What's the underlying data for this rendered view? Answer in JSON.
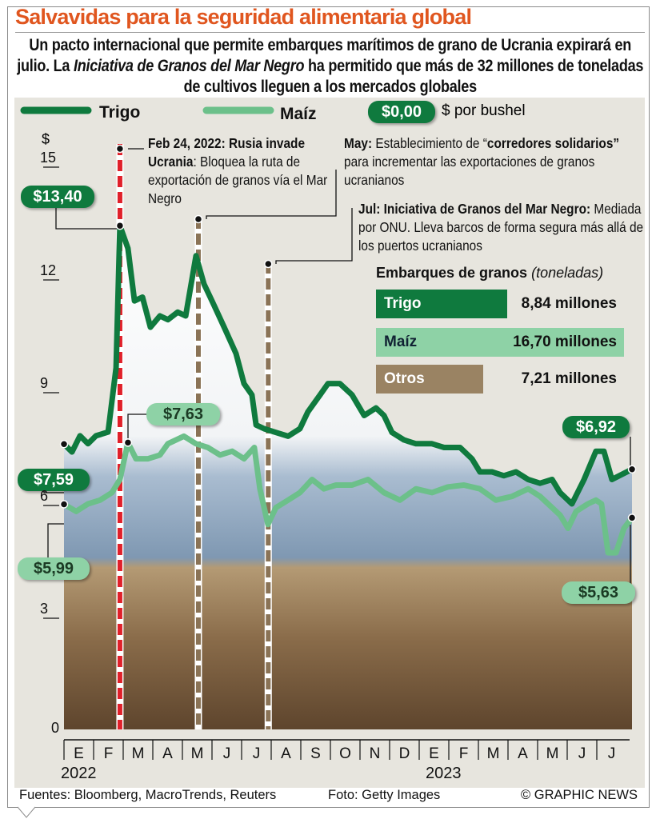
{
  "header": {
    "title": "Salvavidas para la seguridad alimentaria global",
    "subtitle_1": "Un pacto internacional que permite embarques marítimos de grano de Ucrania expirará en julio. La ",
    "subtitle_italic": "Iniciativa de Granos del Mar Negro",
    "subtitle_2": " ha permitido que más de 32 millones de toneladas de cultivos lleguen a los mercados globales"
  },
  "legend": {
    "wheat": "Trigo",
    "corn": "Maíz",
    "pill_sample": "$0,00",
    "unit": "$ por bushel"
  },
  "colors": {
    "wheat": "#0f7a3e",
    "corn": "#6cc08a",
    "event_invasion": "#e0202a",
    "event_other": "#8a7356",
    "title": "#e0561f",
    "panel": "#e7e5de"
  },
  "annotations": {
    "feb_b": "Feb 24, 2022: Rusia invade Ucrania",
    "feb_t": ": Bloquea la ruta de exportación de granos vía el Mar Negro",
    "may_b1": "May:",
    "may_t1": " Establecimiento de “",
    "may_b2": "corredores solidarios”",
    "may_t2": " para incrementar las exportaciones de granos ucranianos",
    "jul_b": "Jul: Iniciativa de Granos del Mar Negro:",
    "jul_t": " Mediada por ONU. Lleva barcos de forma segura más allá de los puertos ucranianos"
  },
  "callouts": {
    "wheat_start": "$7,59",
    "wheat_peak": "$13,40",
    "wheat_end": "$6,92",
    "corn_start": "$5,99",
    "corn_feb": "$7,63",
    "corn_end": "$5,63"
  },
  "shipments": {
    "title": "Embarques de granos",
    "unit": "(toneladas)",
    "items": [
      {
        "label": "Trigo",
        "value": 8.84,
        "text": "8,84 millones",
        "color": "#0f7a3e"
      },
      {
        "label": "Maíz",
        "value": 16.7,
        "text": "16,70 millones",
        "color": "#8ed2a6"
      },
      {
        "label": "Otros",
        "value": 7.21,
        "text": "7,21 millones",
        "color": "#9a8363"
      }
    ]
  },
  "chart_data": {
    "type": "line",
    "title": "Salvavidas para la seguridad alimentaria global",
    "ylabel": "$",
    "ylim": [
      0,
      15
    ],
    "yticks": [
      "0",
      "3",
      "6",
      "9",
      "12",
      "15"
    ],
    "months": [
      "E",
      "F",
      "M",
      "A",
      "M",
      "J",
      "J",
      "A",
      "S",
      "O",
      "N",
      "D",
      "E",
      "F",
      "M",
      "A",
      "M",
      "J",
      "J"
    ],
    "years": [
      "2022",
      "2023"
    ],
    "x_unit": "months since Jan 2022",
    "series": [
      {
        "name": "Trigo",
        "points": [
          [
            0,
            7.59
          ],
          [
            0.27,
            7.38
          ],
          [
            0.54,
            7.81
          ],
          [
            0.81,
            7.6
          ],
          [
            1.08,
            7.81
          ],
          [
            1.49,
            7.91
          ],
          [
            1.76,
            9.62
          ],
          [
            1.89,
            13.4
          ],
          [
            2.16,
            12.8
          ],
          [
            2.38,
            11.4
          ],
          [
            2.65,
            11.5
          ],
          [
            2.92,
            10.7
          ],
          [
            3.24,
            11.0
          ],
          [
            3.51,
            10.9
          ],
          [
            3.84,
            11.1
          ],
          [
            4.11,
            11.0
          ],
          [
            4.46,
            12.6
          ],
          [
            4.73,
            11.85
          ],
          [
            5.0,
            11.4
          ],
          [
            5.41,
            10.7
          ],
          [
            5.81,
            10.0
          ],
          [
            6.08,
            9.2
          ],
          [
            6.35,
            8.9
          ],
          [
            6.49,
            8.1
          ],
          [
            6.76,
            8.0
          ],
          [
            7.16,
            7.9
          ],
          [
            7.57,
            7.8
          ],
          [
            7.97,
            8.0
          ],
          [
            8.24,
            8.45
          ],
          [
            8.65,
            8.9
          ],
          [
            8.92,
            9.2
          ],
          [
            9.32,
            9.2
          ],
          [
            9.73,
            8.9
          ],
          [
            10.14,
            8.35
          ],
          [
            10.54,
            8.55
          ],
          [
            10.81,
            8.35
          ],
          [
            11.08,
            7.9
          ],
          [
            11.49,
            7.7
          ],
          [
            11.89,
            7.6
          ],
          [
            12.43,
            7.6
          ],
          [
            12.84,
            7.5
          ],
          [
            13.38,
            7.5
          ],
          [
            13.78,
            7.2
          ],
          [
            14.05,
            6.85
          ],
          [
            14.46,
            6.85
          ],
          [
            14.86,
            6.75
          ],
          [
            15.27,
            6.85
          ],
          [
            15.68,
            6.65
          ],
          [
            16.08,
            6.55
          ],
          [
            16.49,
            6.65
          ],
          [
            16.76,
            6.3
          ],
          [
            17.16,
            6.0
          ],
          [
            17.57,
            6.65
          ],
          [
            17.97,
            7.4
          ],
          [
            18.24,
            7.4
          ],
          [
            18.51,
            6.65
          ],
          [
            19.19,
            6.92
          ]
        ]
      },
      {
        "name": "Maíz",
        "points": [
          [
            0,
            5.99
          ],
          [
            0.41,
            5.8
          ],
          [
            0.81,
            6.0
          ],
          [
            1.22,
            6.1
          ],
          [
            1.62,
            6.3
          ],
          [
            1.89,
            6.65
          ],
          [
            2.16,
            7.63
          ],
          [
            2.43,
            7.2
          ],
          [
            2.84,
            7.2
          ],
          [
            3.24,
            7.3
          ],
          [
            3.51,
            7.6
          ],
          [
            4.05,
            7.8
          ],
          [
            4.46,
            7.6
          ],
          [
            4.86,
            7.5
          ],
          [
            5.27,
            7.3
          ],
          [
            5.68,
            7.4
          ],
          [
            6.08,
            7.2
          ],
          [
            6.43,
            7.5
          ],
          [
            6.62,
            6.4
          ],
          [
            6.89,
            5.45
          ],
          [
            7.16,
            5.9
          ],
          [
            7.57,
            6.1
          ],
          [
            7.97,
            6.3
          ],
          [
            8.38,
            6.65
          ],
          [
            8.78,
            6.4
          ],
          [
            9.19,
            6.5
          ],
          [
            9.73,
            6.5
          ],
          [
            10.27,
            6.65
          ],
          [
            10.81,
            6.3
          ],
          [
            11.35,
            6.1
          ],
          [
            11.89,
            6.4
          ],
          [
            12.43,
            6.3
          ],
          [
            12.97,
            6.45
          ],
          [
            13.51,
            6.5
          ],
          [
            14.05,
            6.4
          ],
          [
            14.59,
            6.1
          ],
          [
            15.14,
            6.2
          ],
          [
            15.68,
            6.4
          ],
          [
            16.08,
            6.2
          ],
          [
            16.49,
            5.9
          ],
          [
            16.76,
            5.7
          ],
          [
            17.03,
            5.35
          ],
          [
            17.3,
            5.8
          ],
          [
            17.7,
            6.0
          ],
          [
            17.97,
            6.1
          ],
          [
            18.16,
            6.0
          ],
          [
            18.38,
            4.7
          ],
          [
            18.65,
            4.7
          ],
          [
            18.92,
            5.35
          ],
          [
            19.19,
            5.63
          ]
        ]
      }
    ],
    "events": [
      {
        "label": "Feb 24, 2022",
        "month": 1.89,
        "kind": "invasion"
      },
      {
        "label": "May",
        "month": 4.54,
        "kind": "other"
      },
      {
        "label": "Jul",
        "month": 6.9,
        "kind": "other"
      }
    ]
  },
  "footer": {
    "sources": "Fuentes: Bloomberg, MacroTrends, Reuters",
    "photo": "Foto: Getty Images",
    "credit": "© GRAPHIC NEWS"
  }
}
